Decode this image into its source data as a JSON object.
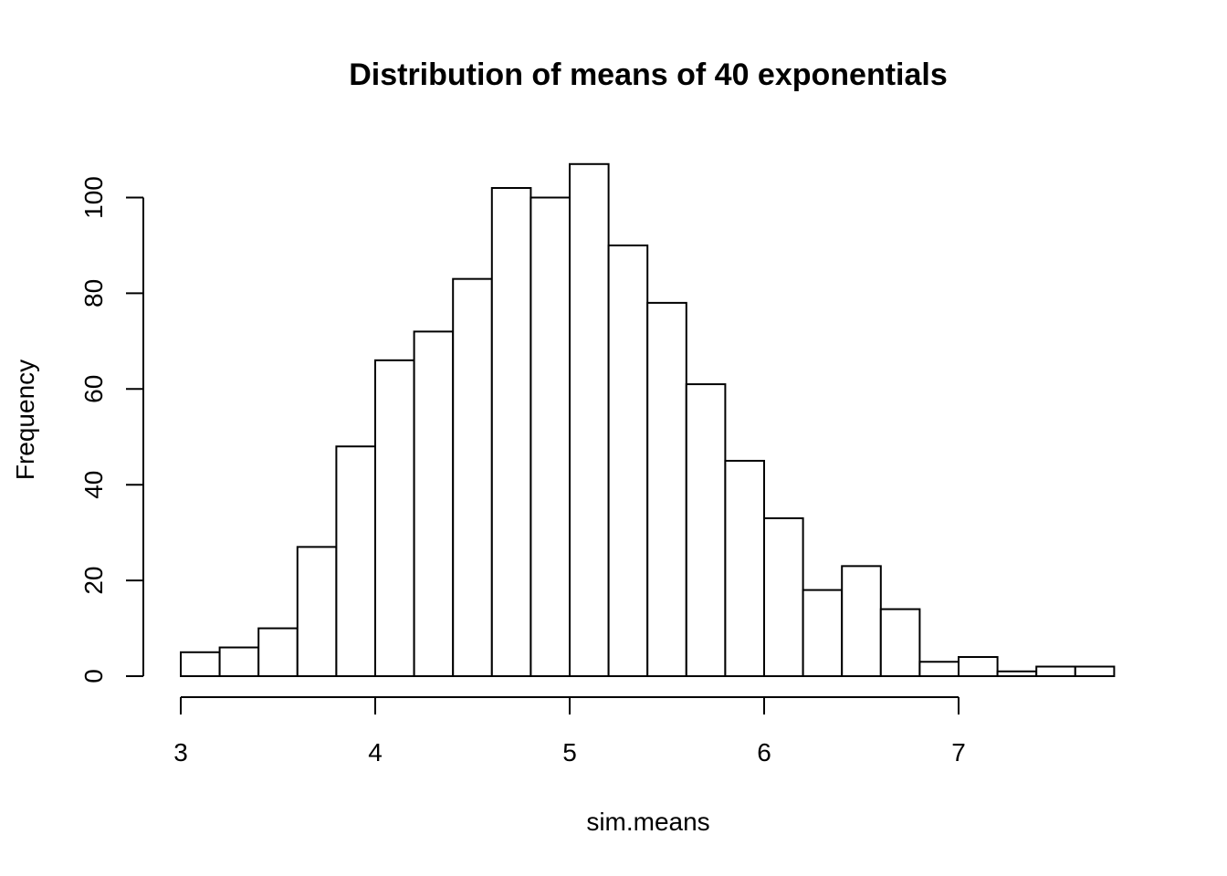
{
  "chart_data": {
    "type": "bar",
    "title": "Distribution of means of 40 exponentials",
    "xlabel": "sim.means",
    "ylabel": "Frequency",
    "bin_width": 0.2,
    "bins": [
      {
        "x0": 3.0,
        "x1": 3.2,
        "count": 5
      },
      {
        "x0": 3.2,
        "x1": 3.4,
        "count": 6
      },
      {
        "x0": 3.4,
        "x1": 3.6,
        "count": 10
      },
      {
        "x0": 3.6,
        "x1": 3.8,
        "count": 27
      },
      {
        "x0": 3.8,
        "x1": 4.0,
        "count": 48
      },
      {
        "x0": 4.0,
        "x1": 4.2,
        "count": 66
      },
      {
        "x0": 4.2,
        "x1": 4.4,
        "count": 72
      },
      {
        "x0": 4.4,
        "x1": 4.6,
        "count": 83
      },
      {
        "x0": 4.6,
        "x1": 4.8,
        "count": 102
      },
      {
        "x0": 4.8,
        "x1": 5.0,
        "count": 100
      },
      {
        "x0": 5.0,
        "x1": 5.2,
        "count": 107
      },
      {
        "x0": 5.2,
        "x1": 5.4,
        "count": 90
      },
      {
        "x0": 5.4,
        "x1": 5.6,
        "count": 78
      },
      {
        "x0": 5.6,
        "x1": 5.8,
        "count": 61
      },
      {
        "x0": 5.8,
        "x1": 6.0,
        "count": 45
      },
      {
        "x0": 6.0,
        "x1": 6.2,
        "count": 33
      },
      {
        "x0": 6.2,
        "x1": 6.4,
        "count": 18
      },
      {
        "x0": 6.4,
        "x1": 6.6,
        "count": 23
      },
      {
        "x0": 6.6,
        "x1": 6.8,
        "count": 14
      },
      {
        "x0": 6.8,
        "x1": 7.0,
        "count": 3
      },
      {
        "x0": 7.0,
        "x1": 7.2,
        "count": 4
      },
      {
        "x0": 7.2,
        "x1": 7.4,
        "count": 1
      },
      {
        "x0": 7.4,
        "x1": 7.6,
        "count": 2
      },
      {
        "x0": 7.6,
        "x1": 7.8,
        "count": 2
      }
    ],
    "x_ticks": [
      3,
      4,
      5,
      6,
      7
    ],
    "x_tick_labels": [
      "3",
      "4",
      "5",
      "6",
      "7"
    ],
    "y_ticks": [
      0,
      20,
      40,
      60,
      80,
      100
    ],
    "y_tick_labels": [
      "0",
      "20",
      "40",
      "60",
      "80",
      "100"
    ],
    "xlim": [
      3,
      7.8
    ],
    "ylim": [
      0,
      107
    ],
    "grid": false,
    "legend": "none"
  }
}
